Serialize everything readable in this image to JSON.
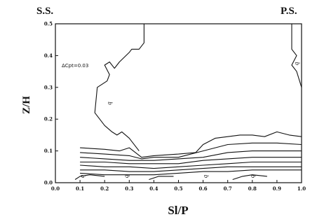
{
  "chart_data": {
    "type": "line",
    "title": "",
    "xlabel": "Sl/P",
    "ylabel": "Z/H",
    "xlim": [
      0.0,
      1.0
    ],
    "ylim": [
      0.0,
      0.5
    ],
    "x_ticks": [
      "0.0",
      "0.1",
      "0.2",
      "0.3",
      "0.4",
      "0.5",
      "0.6",
      "0.7",
      "0.8",
      "0.9",
      "1.0"
    ],
    "y_ticks": [
      "0.0",
      "0.1",
      "0.2",
      "0.3",
      "0.4",
      "0.5"
    ],
    "left_side_label": "S.S.",
    "right_side_label": "P.S.",
    "contour_interval_label": "ΔCpt=0.03",
    "contour_labels": [
      "b",
      "b",
      "b",
      "b",
      "b",
      "b"
    ],
    "grid": false,
    "series": [
      {
        "x": [
          0.36,
          0.36,
          0.34,
          0.31,
          0.3,
          0.26,
          0.24,
          0.22,
          0.2,
          0.22,
          0.21,
          0.17,
          0.16,
          0.2,
          0.23,
          0.25,
          0.27,
          0.3,
          0.34
        ],
        "y": [
          0.5,
          0.44,
          0.42,
          0.42,
          0.41,
          0.38,
          0.36,
          0.38,
          0.37,
          0.34,
          0.32,
          0.3,
          0.22,
          0.18,
          0.16,
          0.15,
          0.16,
          0.14,
          0.1
        ]
      },
      {
        "x": [
          0.96,
          0.96,
          0.98,
          0.96,
          0.98,
          1.0
        ],
        "y": [
          0.5,
          0.42,
          0.4,
          0.37,
          0.35,
          0.3
        ]
      },
      {
        "x": [
          0.1,
          0.2,
          0.26,
          0.3,
          0.35,
          0.4,
          0.5,
          0.57,
          0.6,
          0.65,
          0.7,
          0.75,
          0.8,
          0.85,
          0.9,
          0.95,
          1.0
        ],
        "y": [
          0.11,
          0.105,
          0.1,
          0.11,
          0.08,
          0.085,
          0.09,
          0.095,
          0.12,
          0.14,
          0.145,
          0.15,
          0.15,
          0.145,
          0.16,
          0.15,
          0.145
        ]
      },
      {
        "x": [
          0.1,
          0.2,
          0.3,
          0.35,
          0.4,
          0.5,
          0.6,
          0.7,
          0.8,
          0.9,
          1.0
        ],
        "y": [
          0.095,
          0.09,
          0.085,
          0.075,
          0.08,
          0.08,
          0.1,
          0.12,
          0.125,
          0.125,
          0.12
        ]
      },
      {
        "x": [
          0.1,
          0.2,
          0.3,
          0.4,
          0.5,
          0.6,
          0.7,
          0.8,
          0.9,
          1.0
        ],
        "y": [
          0.08,
          0.075,
          0.07,
          0.07,
          0.075,
          0.08,
          0.095,
          0.1,
          0.1,
          0.1
        ]
      },
      {
        "x": [
          0.1,
          0.2,
          0.3,
          0.4,
          0.5,
          0.6,
          0.7,
          0.8,
          0.9,
          1.0
        ],
        "y": [
          0.065,
          0.065,
          0.06,
          0.06,
          0.06,
          0.07,
          0.075,
          0.08,
          0.08,
          0.08
        ]
      },
      {
        "x": [
          0.1,
          0.2,
          0.3,
          0.4,
          0.5,
          0.6,
          0.7,
          0.8,
          0.9,
          1.0
        ],
        "y": [
          0.055,
          0.05,
          0.05,
          0.045,
          0.05,
          0.055,
          0.06,
          0.065,
          0.065,
          0.065
        ]
      },
      {
        "x": [
          0.1,
          0.2,
          0.3,
          0.4,
          0.5,
          0.6,
          0.7,
          0.8,
          0.9,
          1.0
        ],
        "y": [
          0.04,
          0.04,
          0.035,
          0.035,
          0.04,
          0.045,
          0.05,
          0.05,
          0.05,
          0.05
        ]
      },
      {
        "x": [
          0.1,
          0.2,
          0.3,
          0.4,
          0.5,
          0.6,
          0.7,
          0.8,
          0.9,
          1.0
        ],
        "y": [
          0.03,
          0.025,
          0.025,
          0.025,
          0.03,
          0.035,
          0.035,
          0.04,
          0.04,
          0.04
        ]
      },
      {
        "x": [
          0.08,
          0.1,
          0.14,
          0.2
        ],
        "y": [
          0.01,
          0.02,
          0.025,
          0.02
        ]
      },
      {
        "x": [
          0.38,
          0.42,
          0.48
        ],
        "y": [
          0.01,
          0.02,
          0.02
        ]
      },
      {
        "x": [
          0.72,
          0.76,
          0.8,
          0.86
        ],
        "y": [
          0.01,
          0.02,
          0.025,
          0.02
        ]
      }
    ],
    "label_positions_data": [
      {
        "x": 0.22,
        "y": 0.25
      },
      {
        "x": 0.98,
        "y": 0.375
      },
      {
        "x": 0.11,
        "y": 0.02
      },
      {
        "x": 0.61,
        "y": 0.02
      },
      {
        "x": 0.8,
        "y": 0.02
      },
      {
        "x": 0.29,
        "y": 0.02
      }
    ]
  }
}
